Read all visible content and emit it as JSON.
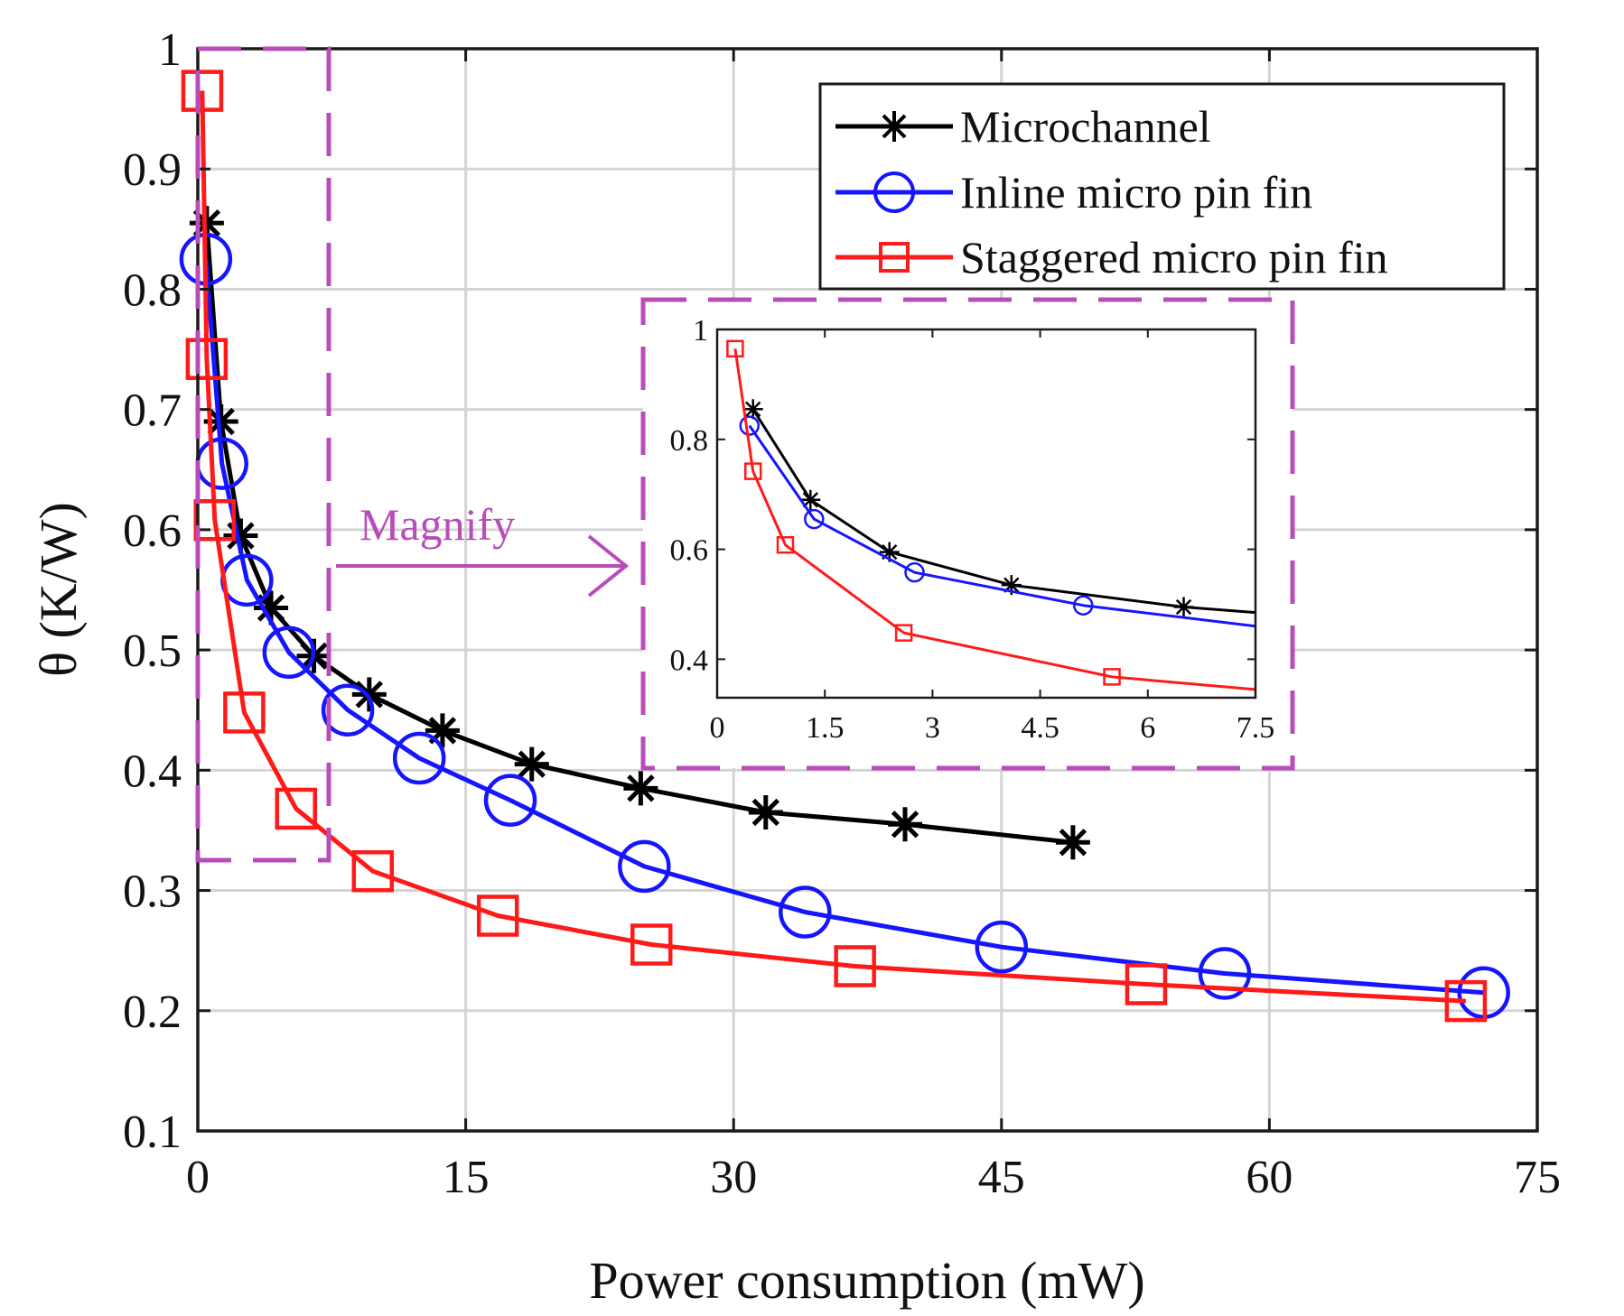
{
  "chart_data": [
    {
      "type": "line",
      "title": "",
      "xlabel": "Power consumption (mW)",
      "ylabel": "θ (K/W)",
      "xlim": [
        0,
        75
      ],
      "ylim": [
        0.1,
        1.0
      ],
      "xticks": [
        0,
        15,
        30,
        45,
        60,
        75
      ],
      "yticks": [
        0.1,
        0.2,
        0.3,
        0.4,
        0.5,
        0.6,
        0.7,
        0.8,
        0.9,
        1.0
      ],
      "xtick_labels": [
        "0",
        "15",
        "30",
        "45",
        "60",
        "75"
      ],
      "ytick_labels": [
        "0.1",
        "0.2",
        "0.3",
        "0.4",
        "0.5",
        "0.6",
        "0.7",
        "0.8",
        "0.9",
        "1"
      ],
      "grid": true,
      "legend_position": "top-right",
      "annotations": [
        {
          "text": "Magnify"
        }
      ],
      "series": [
        {
          "name": "Microchannel",
          "color": "#000000",
          "marker": "asterisk",
          "x": [
            0.5,
            1.3,
            2.4,
            4.1,
            6.5,
            9.6,
            13.7,
            18.7,
            24.8,
            31.8,
            39.6,
            49.0
          ],
          "y": [
            0.855,
            0.69,
            0.595,
            0.535,
            0.495,
            0.463,
            0.433,
            0.405,
            0.385,
            0.365,
            0.355,
            0.34
          ]
        },
        {
          "name": "Inline micro pin fin",
          "color": "#1515ff",
          "marker": "circle",
          "x": [
            0.45,
            1.35,
            2.75,
            5.1,
            8.4,
            12.4,
            17.5,
            25.0,
            34.0,
            45.0,
            57.5,
            72.0
          ],
          "y": [
            0.825,
            0.655,
            0.558,
            0.498,
            0.45,
            0.41,
            0.375,
            0.32,
            0.282,
            0.253,
            0.231,
            0.215
          ]
        },
        {
          "name": "Staggered micro pin fin",
          "color": "#ff1a1a",
          "marker": "square",
          "x": [
            0.25,
            0.5,
            0.95,
            2.6,
            5.5,
            9.8,
            16.8,
            25.4,
            36.8,
            53.1,
            71.0
          ],
          "y": [
            0.965,
            0.742,
            0.608,
            0.448,
            0.368,
            0.316,
            0.279,
            0.255,
            0.237,
            0.222,
            0.208
          ]
        }
      ]
    },
    {
      "type": "line",
      "title": "",
      "xlim": [
        0,
        7.5
      ],
      "ylim": [
        0.33,
        1.0
      ],
      "xticks": [
        0,
        1.5,
        3,
        4.5,
        6,
        7.5
      ],
      "yticks": [
        0.4,
        0.6,
        0.8,
        1.0
      ],
      "xtick_labels": [
        "0",
        "1.5",
        "3",
        "4.5",
        "6",
        "7.5"
      ],
      "ytick_labels": [
        "0.4",
        "0.6",
        "0.8",
        "1"
      ],
      "grid": false,
      "series": [
        {
          "name": "Microchannel",
          "color": "#000000",
          "marker": "asterisk",
          "x": [
            0.5,
            1.3,
            2.4,
            4.1,
            6.5
          ],
          "y": [
            0.855,
            0.69,
            0.595,
            0.535,
            0.495
          ],
          "line_x_end": 7.5,
          "line_y_end": 0.485
        },
        {
          "name": "Inline micro pin fin",
          "color": "#1515ff",
          "marker": "circle",
          "x": [
            0.45,
            1.35,
            2.75,
            5.1
          ],
          "y": [
            0.825,
            0.655,
            0.558,
            0.498
          ],
          "line_x_end": 7.5,
          "line_y_end": 0.46
        },
        {
          "name": "Staggered micro pin fin",
          "color": "#ff1a1a",
          "marker": "square",
          "x": [
            0.25,
            0.5,
            0.95,
            2.6,
            5.5
          ],
          "y": [
            0.965,
            0.742,
            0.608,
            0.448,
            0.368
          ],
          "line_x_end": 7.5,
          "line_y_end": 0.345
        }
      ]
    }
  ]
}
